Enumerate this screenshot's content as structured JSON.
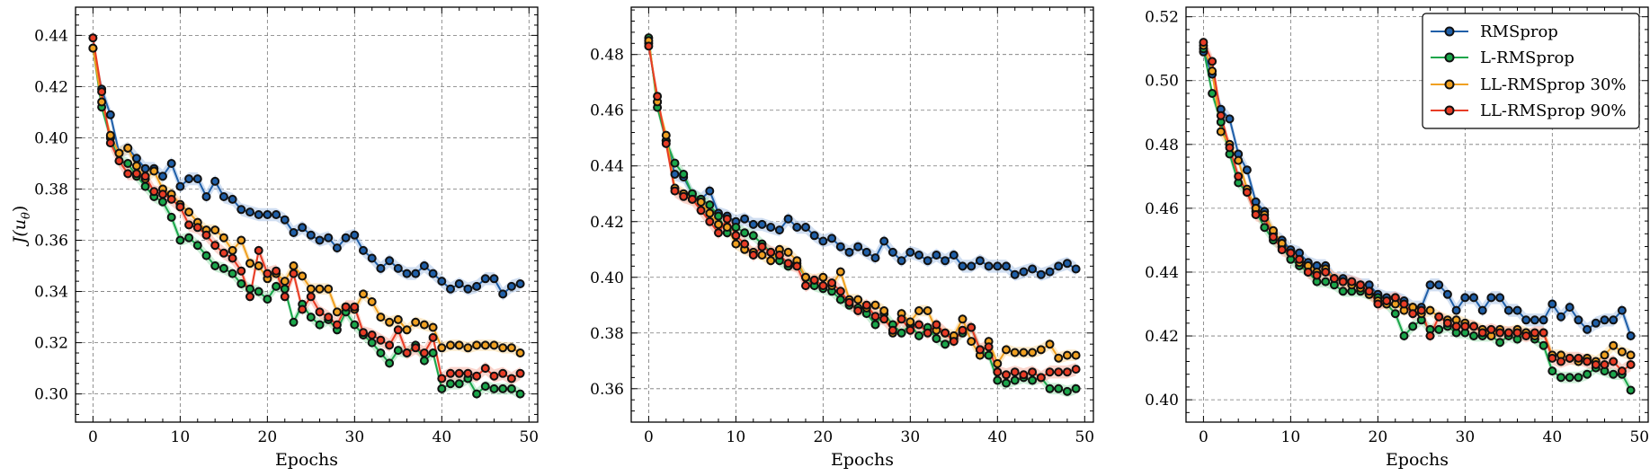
{
  "figure": {
    "xlabel": "Epochs",
    "ylabel": "J(u",
    "ylabel_sub": "θ",
    "ylabel_close": ")"
  },
  "series_meta": [
    {
      "name": "RMSprop",
      "color": "#1f5fa8",
      "band": "#a9c3e6"
    },
    {
      "name": "L-RMSprop",
      "color": "#1aa64a",
      "band": "#a4e0b6"
    },
    {
      "name": "LL-RMSprop 30%",
      "color": "#f0a020",
      "band": "#f8d9a0"
    },
    {
      "name": "LL-RMSprop 90%",
      "color": "#e83c25",
      "band": "#f6b0a2"
    }
  ],
  "chart_data": [
    {
      "type": "line",
      "xlabel": "Epochs",
      "ylabel": "J(uθ)",
      "xlim": [
        -2,
        51
      ],
      "ylim": [
        0.289,
        0.451
      ],
      "xticks": [
        0,
        10,
        20,
        30,
        40,
        50
      ],
      "yticks": [
        0.3,
        0.32,
        0.34,
        0.36,
        0.38,
        0.4,
        0.42,
        0.44
      ],
      "ytick_labels": [
        "0.30",
        "0.32",
        "0.34",
        "0.36",
        "0.38",
        "0.40",
        "0.42",
        "0.44"
      ],
      "grid": true,
      "legend": false,
      "x": [
        0,
        1,
        2,
        3,
        4,
        5,
        6,
        7,
        8,
        9,
        10,
        11,
        12,
        13,
        14,
        15,
        16,
        17,
        18,
        19,
        20,
        21,
        22,
        23,
        24,
        25,
        26,
        27,
        28,
        29,
        30,
        31,
        32,
        33,
        34,
        35,
        36,
        37,
        38,
        39,
        40,
        41,
        42,
        43,
        44,
        45,
        46,
        47,
        48,
        49
      ],
      "series": [
        {
          "name": "RMSprop",
          "values": [
            0.435,
            0.419,
            0.409,
            0.394,
            0.396,
            0.392,
            0.388,
            0.388,
            0.385,
            0.39,
            0.381,
            0.384,
            0.384,
            0.377,
            0.383,
            0.377,
            0.376,
            0.372,
            0.371,
            0.37,
            0.37,
            0.37,
            0.368,
            0.363,
            0.365,
            0.362,
            0.36,
            0.361,
            0.357,
            0.361,
            0.362,
            0.356,
            0.353,
            0.349,
            0.352,
            0.349,
            0.347,
            0.347,
            0.35,
            0.347,
            0.344,
            0.341,
            0.343,
            0.341,
            0.342,
            0.345,
            0.345,
            0.339,
            0.342,
            0.343
          ]
        },
        {
          "name": "L-RMSprop",
          "values": [
            0.435,
            0.412,
            0.4,
            0.391,
            0.39,
            0.385,
            0.381,
            0.377,
            0.375,
            0.369,
            0.36,
            0.361,
            0.358,
            0.354,
            0.35,
            0.349,
            0.347,
            0.343,
            0.341,
            0.34,
            0.337,
            0.342,
            0.341,
            0.328,
            0.335,
            0.33,
            0.327,
            0.329,
            0.325,
            0.332,
            0.327,
            0.323,
            0.32,
            0.316,
            0.312,
            0.317,
            0.316,
            0.319,
            0.313,
            0.316,
            0.302,
            0.304,
            0.304,
            0.306,
            0.3,
            0.303,
            0.302,
            0.302,
            0.302,
            0.3
          ]
        },
        {
          "name": "LL-RMSprop 30%",
          "values": [
            0.435,
            0.414,
            0.401,
            0.394,
            0.396,
            0.389,
            0.384,
            0.387,
            0.38,
            0.378,
            0.374,
            0.371,
            0.367,
            0.364,
            0.364,
            0.361,
            0.356,
            0.36,
            0.351,
            0.35,
            0.345,
            0.347,
            0.344,
            0.35,
            0.346,
            0.341,
            0.341,
            0.341,
            0.332,
            0.334,
            0.333,
            0.339,
            0.336,
            0.33,
            0.328,
            0.329,
            0.325,
            0.328,
            0.327,
            0.326,
            0.318,
            0.319,
            0.319,
            0.318,
            0.319,
            0.319,
            0.319,
            0.318,
            0.318,
            0.316
          ]
        },
        {
          "name": "LL-RMSprop 90%",
          "values": [
            0.439,
            0.418,
            0.398,
            0.391,
            0.386,
            0.386,
            0.385,
            0.379,
            0.378,
            0.376,
            0.373,
            0.366,
            0.365,
            0.362,
            0.358,
            0.355,
            0.353,
            0.348,
            0.338,
            0.356,
            0.347,
            0.348,
            0.338,
            0.347,
            0.333,
            0.338,
            0.332,
            0.33,
            0.327,
            0.334,
            0.334,
            0.324,
            0.323,
            0.321,
            0.319,
            0.325,
            0.316,
            0.318,
            0.316,
            0.322,
            0.306,
            0.308,
            0.308,
            0.308,
            0.307,
            0.31,
            0.307,
            0.308,
            0.306,
            0.308
          ]
        }
      ]
    },
    {
      "type": "line",
      "xlabel": "Epochs",
      "ylabel": "",
      "xlim": [
        -2,
        51
      ],
      "ylim": [
        0.348,
        0.497
      ],
      "xticks": [
        0,
        10,
        20,
        30,
        40,
        50
      ],
      "yticks": [
        0.36,
        0.38,
        0.4,
        0.42,
        0.44,
        0.46,
        0.48
      ],
      "ytick_labels": [
        "0.36",
        "0.38",
        "0.40",
        "0.42",
        "0.44",
        "0.46",
        "0.48"
      ],
      "grid": true,
      "legend": false,
      "x": [
        0,
        1,
        2,
        3,
        4,
        5,
        6,
        7,
        8,
        9,
        10,
        11,
        12,
        13,
        14,
        15,
        16,
        17,
        18,
        19,
        20,
        21,
        22,
        23,
        24,
        25,
        26,
        27,
        28,
        29,
        30,
        31,
        32,
        33,
        34,
        35,
        36,
        37,
        38,
        39,
        40,
        41,
        42,
        43,
        44,
        45,
        46,
        47,
        48,
        49
      ],
      "series": [
        {
          "name": "RMSprop",
          "values": [
            0.484,
            0.463,
            0.449,
            0.437,
            0.436,
            0.43,
            0.428,
            0.431,
            0.423,
            0.422,
            0.42,
            0.421,
            0.419,
            0.419,
            0.418,
            0.417,
            0.421,
            0.418,
            0.418,
            0.415,
            0.413,
            0.414,
            0.411,
            0.409,
            0.411,
            0.409,
            0.407,
            0.413,
            0.409,
            0.406,
            0.409,
            0.408,
            0.406,
            0.408,
            0.406,
            0.408,
            0.404,
            0.404,
            0.406,
            0.404,
            0.404,
            0.404,
            0.401,
            0.402,
            0.403,
            0.401,
            0.402,
            0.404,
            0.405,
            0.403
          ]
        },
        {
          "name": "L-RMSprop",
          "values": [
            0.486,
            0.461,
            0.449,
            0.441,
            0.437,
            0.43,
            0.428,
            0.426,
            0.422,
            0.416,
            0.418,
            0.416,
            0.415,
            0.412,
            0.409,
            0.406,
            0.404,
            0.405,
            0.4,
            0.397,
            0.396,
            0.395,
            0.392,
            0.39,
            0.389,
            0.387,
            0.383,
            0.387,
            0.383,
            0.38,
            0.383,
            0.379,
            0.382,
            0.378,
            0.376,
            0.378,
            0.38,
            0.382,
            0.374,
            0.372,
            0.363,
            0.362,
            0.363,
            0.364,
            0.363,
            0.364,
            0.36,
            0.36,
            0.359,
            0.36
          ]
        },
        {
          "name": "LL-RMSprop 30%",
          "values": [
            0.485,
            0.463,
            0.451,
            0.432,
            0.43,
            0.428,
            0.427,
            0.423,
            0.419,
            0.418,
            0.412,
            0.41,
            0.409,
            0.408,
            0.406,
            0.41,
            0.409,
            0.406,
            0.4,
            0.399,
            0.4,
            0.397,
            0.402,
            0.392,
            0.392,
            0.389,
            0.39,
            0.388,
            0.38,
            0.387,
            0.384,
            0.388,
            0.388,
            0.381,
            0.38,
            0.379,
            0.385,
            0.377,
            0.372,
            0.377,
            0.369,
            0.374,
            0.373,
            0.373,
            0.373,
            0.374,
            0.376,
            0.371,
            0.372,
            0.372
          ]
        },
        {
          "name": "LL-RMSprop 90%",
          "values": [
            0.483,
            0.465,
            0.448,
            0.431,
            0.429,
            0.428,
            0.424,
            0.42,
            0.416,
            0.421,
            0.415,
            0.412,
            0.408,
            0.411,
            0.409,
            0.408,
            0.405,
            0.404,
            0.397,
            0.399,
            0.397,
            0.398,
            0.395,
            0.391,
            0.388,
            0.39,
            0.386,
            0.385,
            0.381,
            0.385,
            0.381,
            0.383,
            0.38,
            0.383,
            0.38,
            0.377,
            0.381,
            0.382,
            0.374,
            0.375,
            0.366,
            0.365,
            0.366,
            0.365,
            0.366,
            0.364,
            0.366,
            0.366,
            0.366,
            0.367
          ]
        }
      ]
    },
    {
      "type": "line",
      "xlabel": "Epochs",
      "ylabel": "",
      "xlim": [
        -2,
        51
      ],
      "ylim": [
        0.393,
        0.523
      ],
      "xticks": [
        0,
        10,
        20,
        30,
        40,
        50
      ],
      "yticks": [
        0.4,
        0.42,
        0.44,
        0.46,
        0.48,
        0.5,
        0.52
      ],
      "ytick_labels": [
        "0.40",
        "0.42",
        "0.44",
        "0.46",
        "0.48",
        "0.50",
        "0.52"
      ],
      "grid": true,
      "legend": true,
      "legend_position": "top-right",
      "x": [
        0,
        1,
        2,
        3,
        4,
        5,
        6,
        7,
        8,
        9,
        10,
        11,
        12,
        13,
        14,
        15,
        16,
        17,
        18,
        19,
        20,
        21,
        22,
        23,
        24,
        25,
        26,
        27,
        28,
        29,
        30,
        31,
        32,
        33,
        34,
        35,
        36,
        37,
        38,
        39,
        40,
        41,
        42,
        43,
        44,
        45,
        46,
        47,
        48,
        49
      ],
      "series": [
        {
          "name": "RMSprop",
          "values": [
            0.509,
            0.502,
            0.491,
            0.488,
            0.477,
            0.472,
            0.462,
            0.459,
            0.452,
            0.45,
            0.447,
            0.446,
            0.443,
            0.442,
            0.442,
            0.438,
            0.438,
            0.437,
            0.436,
            0.436,
            0.433,
            0.432,
            0.432,
            0.431,
            0.429,
            0.429,
            0.436,
            0.436,
            0.433,
            0.428,
            0.432,
            0.432,
            0.428,
            0.432,
            0.432,
            0.428,
            0.428,
            0.425,
            0.425,
            0.425,
            0.43,
            0.426,
            0.429,
            0.425,
            0.422,
            0.424,
            0.425,
            0.425,
            0.428,
            0.42
          ]
        },
        {
          "name": "L-RMSprop",
          "values": [
            0.51,
            0.496,
            0.487,
            0.477,
            0.468,
            0.465,
            0.459,
            0.454,
            0.45,
            0.448,
            0.444,
            0.442,
            0.44,
            0.437,
            0.437,
            0.436,
            0.434,
            0.434,
            0.434,
            0.433,
            0.432,
            0.43,
            0.427,
            0.42,
            0.423,
            0.425,
            0.422,
            0.422,
            0.423,
            0.421,
            0.421,
            0.42,
            0.42,
            0.42,
            0.418,
            0.42,
            0.419,
            0.421,
            0.419,
            0.417,
            0.409,
            0.407,
            0.407,
            0.407,
            0.408,
            0.41,
            0.409,
            0.408,
            0.408,
            0.403
          ]
        },
        {
          "name": "LL-RMSprop 30%",
          "values": [
            0.511,
            0.503,
            0.484,
            0.48,
            0.475,
            0.466,
            0.46,
            0.458,
            0.453,
            0.449,
            0.446,
            0.443,
            0.442,
            0.44,
            0.441,
            0.438,
            0.437,
            0.436,
            0.435,
            0.433,
            0.431,
            0.43,
            0.43,
            0.428,
            0.429,
            0.427,
            0.428,
            0.426,
            0.425,
            0.425,
            0.424,
            0.423,
            0.422,
            0.42,
            0.422,
            0.421,
            0.422,
            0.421,
            0.42,
            0.421,
            0.414,
            0.414,
            0.413,
            0.412,
            0.413,
            0.412,
            0.414,
            0.417,
            0.415,
            0.414
          ]
        },
        {
          "name": "LL-RMSprop 90%",
          "values": [
            0.512,
            0.506,
            0.489,
            0.479,
            0.47,
            0.465,
            0.458,
            0.457,
            0.451,
            0.447,
            0.446,
            0.444,
            0.44,
            0.439,
            0.44,
            0.438,
            0.437,
            0.437,
            0.436,
            0.434,
            0.43,
            0.431,
            0.432,
            0.43,
            0.427,
            0.428,
            0.42,
            0.426,
            0.424,
            0.423,
            0.423,
            0.423,
            0.421,
            0.422,
            0.421,
            0.421,
            0.421,
            0.42,
            0.421,
            0.421,
            0.413,
            0.412,
            0.413,
            0.413,
            0.412,
            0.411,
            0.411,
            0.412,
            0.409,
            0.411
          ]
        }
      ]
    }
  ]
}
